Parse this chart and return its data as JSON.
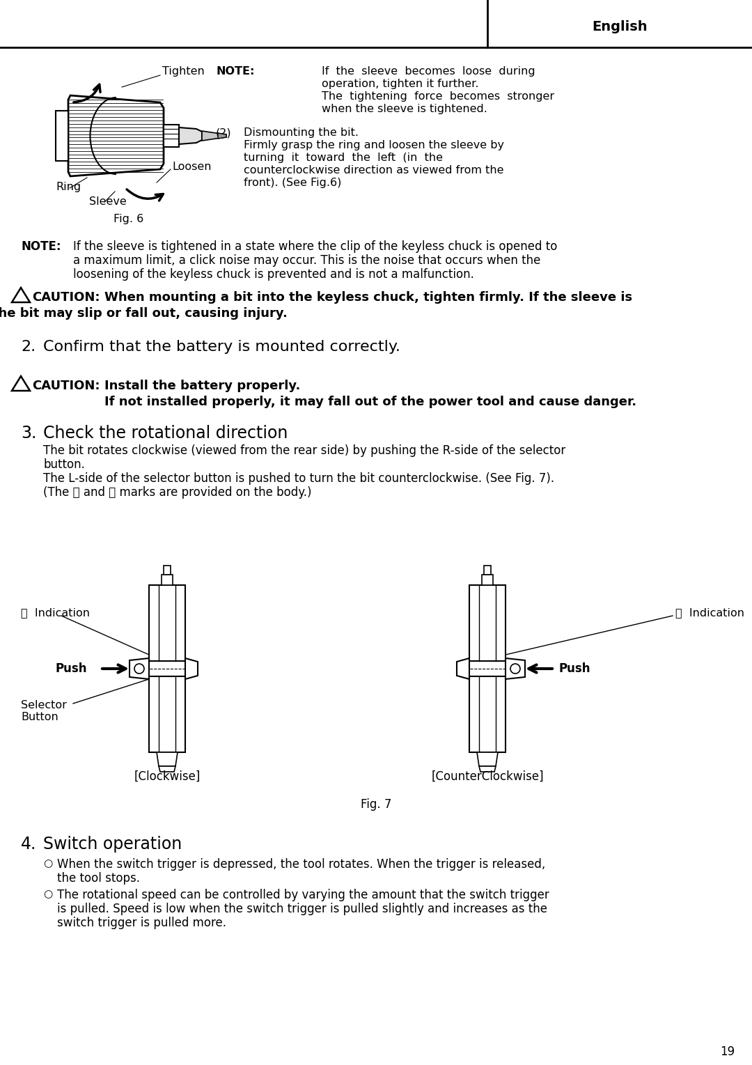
{
  "bg_color": "#ffffff",
  "page_number": "19",
  "header_text": "English",
  "fig6": {
    "tighten": "Tighten",
    "loosen": "Loosen",
    "ring": "Ring",
    "sleeve": "Sleeve",
    "fig_label": "Fig. 6"
  },
  "note1_bold": "NOTE:",
  "note1_lines": [
    " If  the  sleeve  becomes  loose  during",
    "       operation, tighten it further.",
    "       The  tightening  force  becomes  stronger",
    "       when the sleeve is tightened."
  ],
  "item2_label": "(2)  Dismounting the bit.",
  "item2_lines": [
    "       Firmly grasp the ring and loosen the sleeve by",
    "       turning  it  toward  the  left  (in  the",
    "       counterclockwise direction as viewed from the",
    "       front). (See Fig.6)"
  ],
  "note2_bold": "NOTE:",
  "note2_lines": [
    "  If the sleeve is tightened in a state where the clip of the keyless chuck is opened to",
    "        a maximum limit, a click noise may occur. This is the noise that occurs when the",
    "        loosening of the keyless chuck is prevented and is not a malfunction."
  ],
  "caution1_bold": "CAUTION:",
  "caution1_lines": [
    " When mounting a bit into the keyless chuck, tighten firmly. If the sleeve is",
    "              not tight, the bit may slip or fall out, causing injury."
  ],
  "item2_header": "2.",
  "item2_text": "   Confirm that the battery is mounted correctly.",
  "caution2_bold": "CAUTION:",
  "caution2_line1": " Install the battery properly.",
  "caution2_line2": "               If not installed properly, it may fall out of the power tool and cause danger.",
  "item3_header": "3.",
  "item3_title": "   Check the rotational direction",
  "item3_para1": "   The bit rotates clockwise (viewed from the rear side) by pushing the R-side of the selector",
  "item3_para1b": "   button.",
  "item3_para2": "   The L-side of the selector button is pushed to turn the bit counterclockwise. (See Fig. 7).",
  "item3_para2b": "   (The Ⓛ and Ⓡ marks are provided on the body.)",
  "fig7": {
    "R_indication": "Ⓡ  Indication",
    "push_left": "Push",
    "selector_button_line1": "Selector",
    "selector_button_line2": "Button",
    "clockwise": "[Clockwise]",
    "L_indication": "Ⓛ  Indication",
    "push_right": "Push",
    "counterclockwise": "[CounterClockwise]",
    "fig_label": "Fig. 7"
  },
  "item4_header": "4.",
  "item4_title": "   Switch operation",
  "item4_bullet1a": "   When the switch trigger is depressed, the tool rotates. When the trigger is released,",
  "item4_bullet1b": "   the tool stops.",
  "item4_bullet2a": "   The rotational speed can be controlled by varying the amount that the switch trigger",
  "item4_bullet2b": "   is pulled. Speed is low when the switch trigger is pulled slightly and increases as the",
  "item4_bullet2c": "   switch trigger is pulled more."
}
